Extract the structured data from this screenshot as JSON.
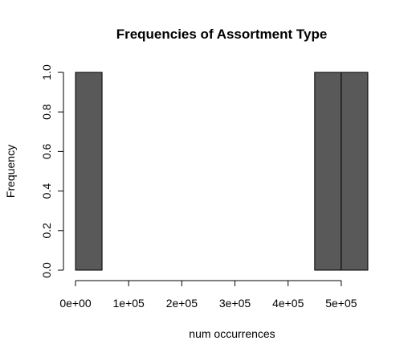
{
  "chart_data": {
    "type": "bar",
    "title": "Frequencies of Assortment Type",
    "xlabel": "num occurrences",
    "ylabel": "Frequency",
    "bins": [
      {
        "start": 0,
        "end": 50000,
        "count": 1
      },
      {
        "start": 50000,
        "end": 100000,
        "count": 0
      },
      {
        "start": 100000,
        "end": 150000,
        "count": 0
      },
      {
        "start": 150000,
        "end": 200000,
        "count": 0
      },
      {
        "start": 200000,
        "end": 250000,
        "count": 0
      },
      {
        "start": 250000,
        "end": 300000,
        "count": 0
      },
      {
        "start": 300000,
        "end": 350000,
        "count": 0
      },
      {
        "start": 350000,
        "end": 400000,
        "count": 0
      },
      {
        "start": 400000,
        "end": 450000,
        "count": 0
      },
      {
        "start": 450000,
        "end": 500000,
        "count": 1
      },
      {
        "start": 500000,
        "end": 550000,
        "count": 1
      }
    ],
    "xlim": [
      0,
      550000
    ],
    "ylim": [
      0,
      1
    ],
    "x_ticks": [
      0,
      100000,
      200000,
      300000,
      400000,
      500000
    ],
    "x_tick_labels": [
      "0e+00",
      "1e+05",
      "2e+05",
      "3e+05",
      "4e+05",
      "5e+05"
    ],
    "y_ticks": [
      0,
      0.2,
      0.4,
      0.6,
      0.8,
      1.0
    ],
    "y_tick_labels": [
      "0.0",
      "0.2",
      "0.4",
      "0.6",
      "0.8",
      "1.0"
    ],
    "bar_color": "#595959",
    "grid": false,
    "legend": "none"
  }
}
